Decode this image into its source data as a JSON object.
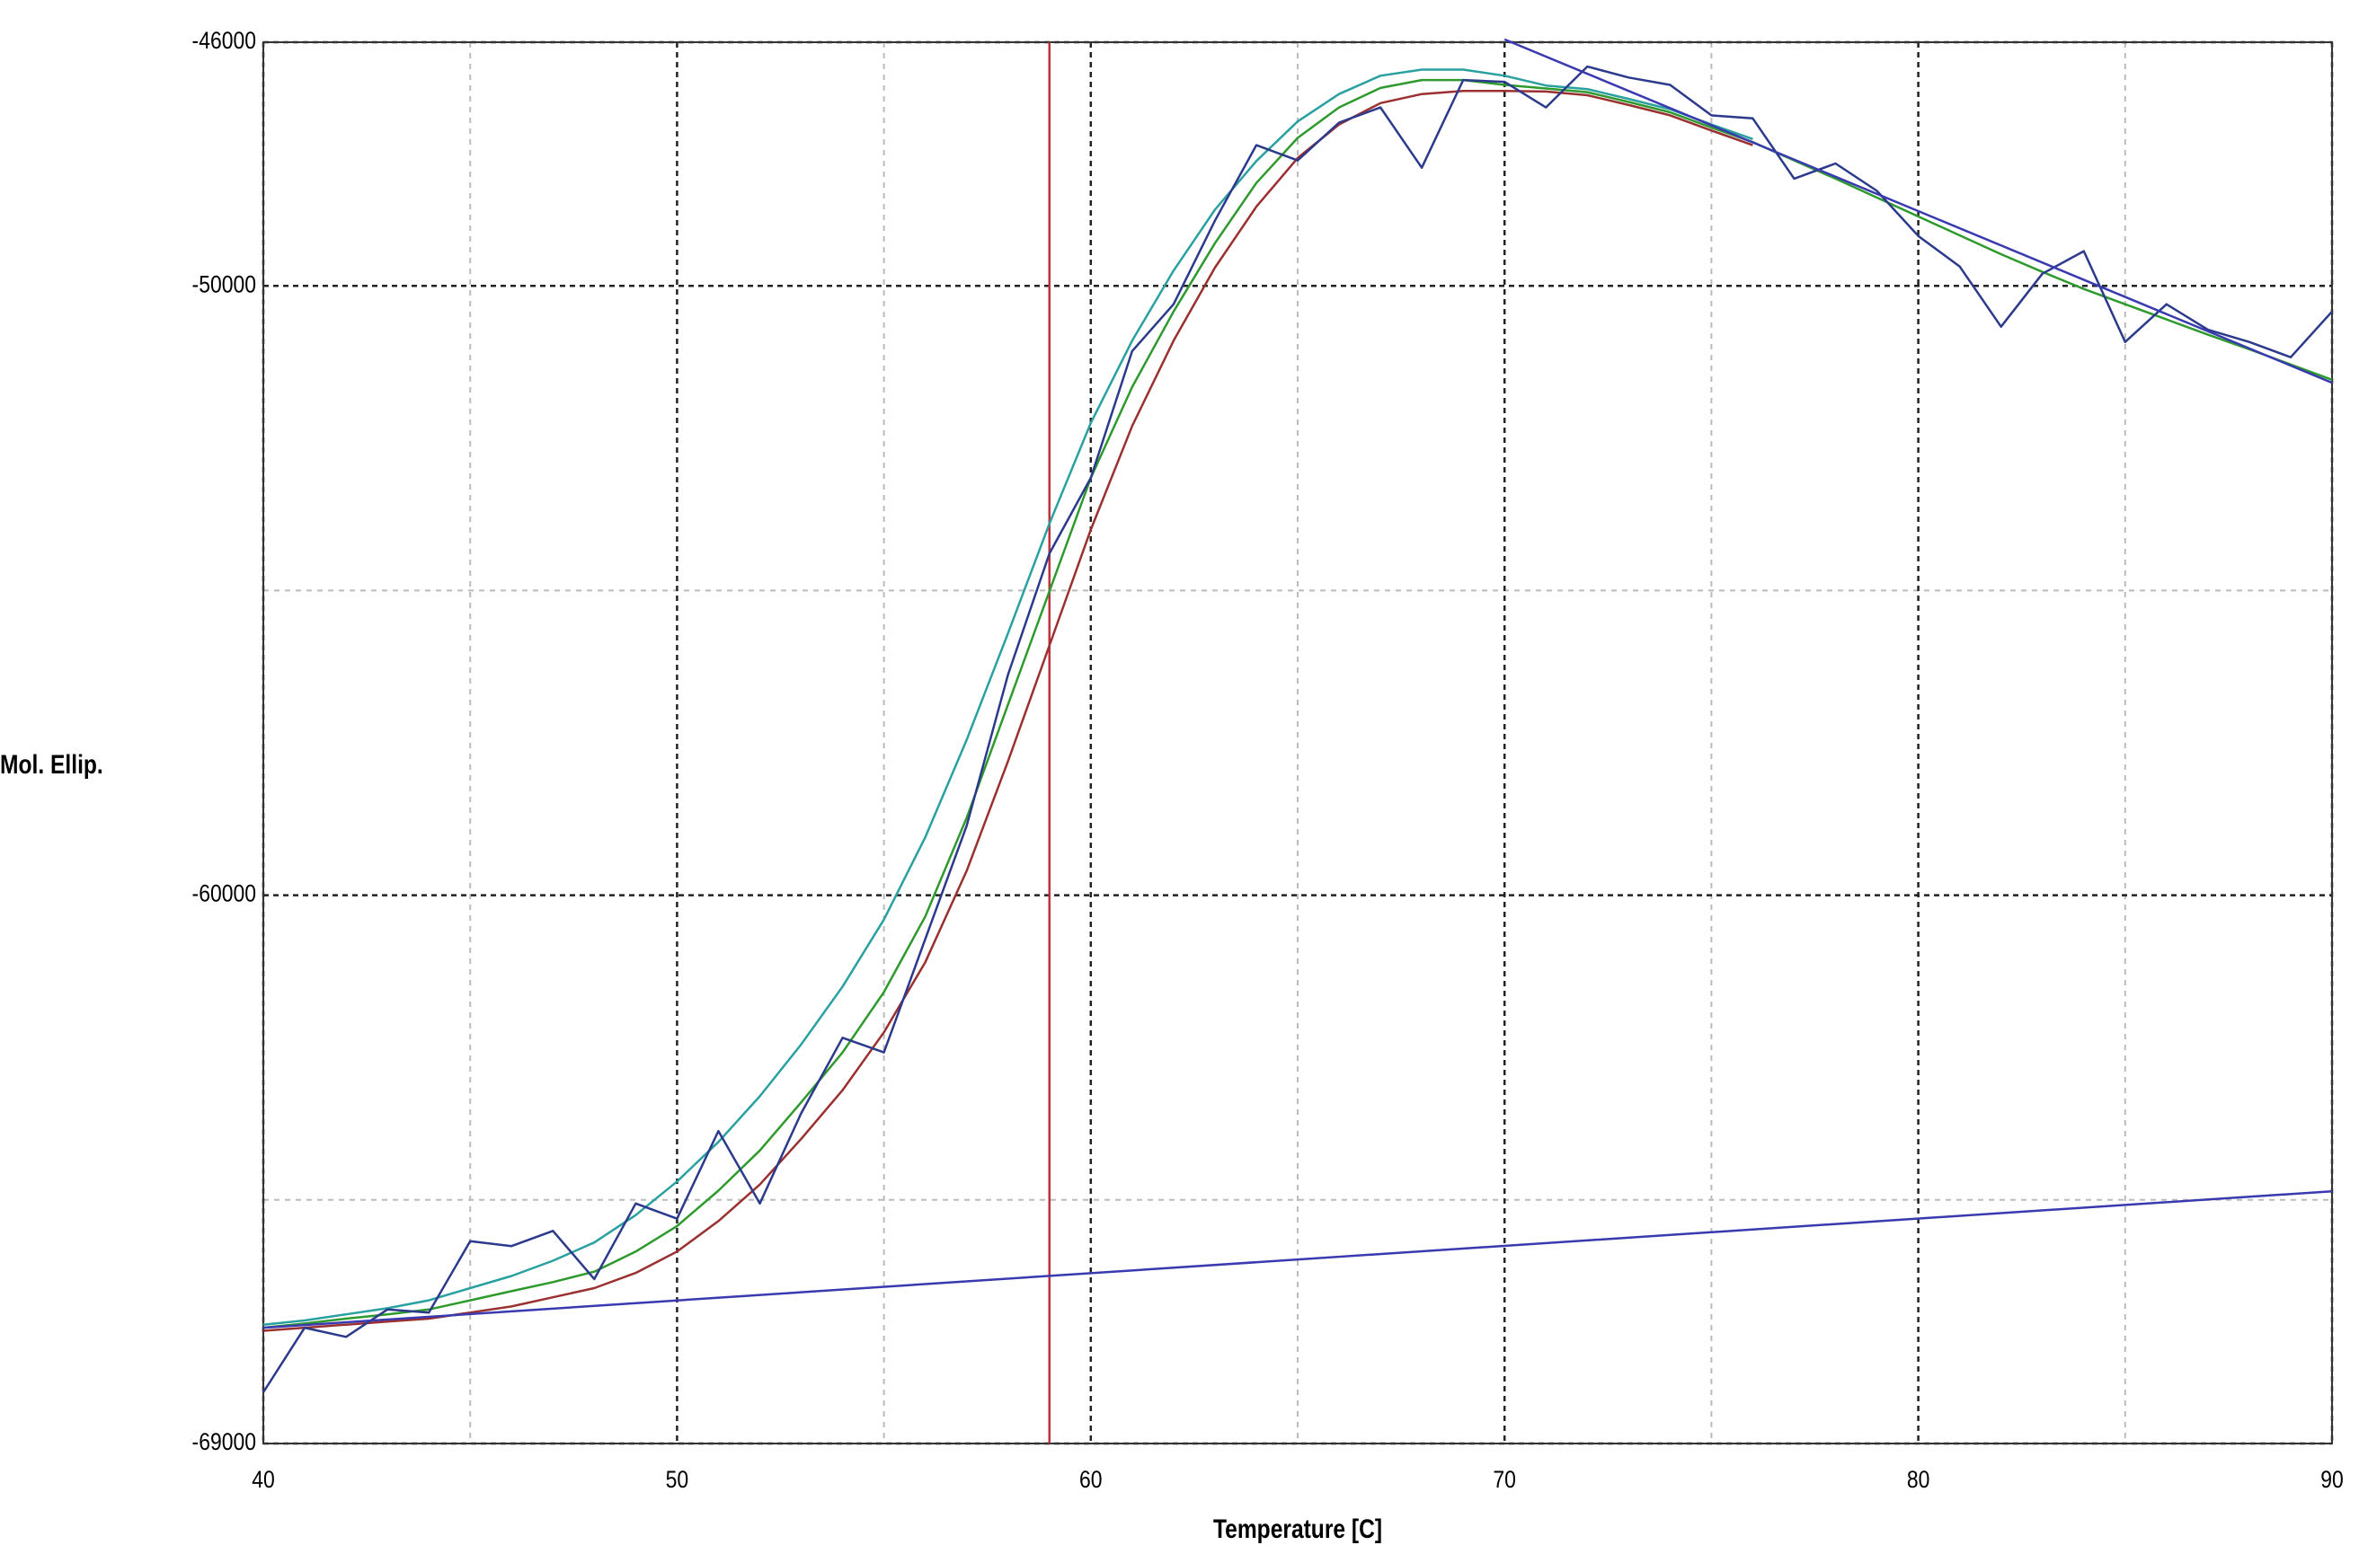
{
  "chart_data": {
    "type": "line",
    "x_label": "Temperature [C]",
    "y_label": "Mol. Ellip.",
    "xlim": [
      40,
      90
    ],
    "ylim": [
      -69000,
      -46000
    ],
    "xticks": [
      40,
      50,
      60,
      70,
      80,
      90
    ],
    "yticks": [
      -69000,
      -60000,
      -50000,
      -46000
    ],
    "x_minor_grid": [
      45,
      55,
      65,
      75,
      85
    ],
    "y_minor_grid": [
      -65000,
      -55000
    ],
    "grid": true,
    "vlines": [
      {
        "x": 59,
        "color": "#c0303a"
      }
    ],
    "x": [
      40,
      41,
      42,
      43,
      44,
      45,
      46,
      47,
      48,
      49,
      50,
      51,
      52,
      53,
      54,
      55,
      56,
      57,
      58,
      59,
      60,
      61,
      62,
      63,
      64,
      65,
      66,
      67,
      68,
      69,
      70,
      71,
      72,
      73,
      74,
      75,
      76,
      77,
      78,
      79,
      80,
      81,
      82,
      83,
      84,
      85,
      86,
      87,
      88,
      89,
      90
    ],
    "series": [
      {
        "color": "#9a3030",
        "values": [
          -67150,
          -67100,
          -67050,
          -67000,
          -66950,
          -66850,
          -66750,
          -66600,
          -66450,
          -66200,
          -65850,
          -65350,
          -64750,
          -64000,
          -63200,
          -62250,
          -61100,
          -59600,
          -57800,
          -55900,
          -54000,
          -52300,
          -50900,
          -49700,
          -48700,
          -47900,
          -47350,
          -47000,
          -46850,
          -46800,
          -46800,
          -46810,
          -46870,
          -47030,
          -47200,
          -47450,
          -47690,
          null,
          null,
          null,
          null,
          null,
          null,
          null,
          null,
          null,
          null,
          null,
          null,
          null,
          null
        ]
      },
      {
        "color": "#2aa0a0",
        "values": [
          -67050,
          -66980,
          -66880,
          -66780,
          -66650,
          -66450,
          -66250,
          -66000,
          -65700,
          -65250,
          -64700,
          -64050,
          -63300,
          -62450,
          -61500,
          -60400,
          -59050,
          -57450,
          -55700,
          -53900,
          -52250,
          -50900,
          -49750,
          -48750,
          -47950,
          -47300,
          -46850,
          -46550,
          -46450,
          -46450,
          -46550,
          -46710,
          -46770,
          -46930,
          -47100,
          -47350,
          -47590,
          null,
          null,
          null,
          null,
          null,
          null,
          null,
          null,
          null,
          null,
          null,
          null,
          null,
          null
        ]
      },
      {
        "color": "#2e9a2e",
        "values": [
          -67100,
          -67030,
          -66950,
          -66880,
          -66800,
          -66650,
          -66500,
          -66350,
          -66180,
          -65850,
          -65430,
          -64850,
          -64190,
          -63400,
          -62580,
          -61590,
          -60350,
          -58730,
          -56870,
          -55010,
          -53150,
          -51660,
          -50420,
          -49300,
          -48310,
          -47570,
          -47070,
          -46750,
          -46620,
          -46620,
          -46700,
          -46760,
          -46820,
          -46980,
          -47150,
          -47400,
          -47640,
          -47940,
          -48240,
          -48550,
          -48860,
          -49170,
          -49480,
          -49770,
          -50050,
          -50300,
          -50550,
          -50800,
          -51040,
          -51290,
          -51540
        ]
      },
      {
        "color": "#2c3a8c",
        "values": [
          -68160,
          -67100,
          -67250,
          -66800,
          -66850,
          -65680,
          -65760,
          -65510,
          -66300,
          -65060,
          -65310,
          -63870,
          -65060,
          -63580,
          -62340,
          -62580,
          -60720,
          -58860,
          -56380,
          -54390,
          -53150,
          -51070,
          -50300,
          -48930,
          -47690,
          -47940,
          -47320,
          -47070,
          -48060,
          -46620,
          -46650,
          -47070,
          -46400,
          -46580,
          -46700,
          -47200,
          -47250,
          -48240,
          -47990,
          -48440,
          -49180,
          -49680,
          -50670,
          -49800,
          -49430,
          -50920,
          -50300,
          -50720,
          -50920,
          -51170,
          -50420
        ]
      },
      {
        "color": "#3a3ab0",
        "x": [
          40,
          90
        ],
        "values": [
          -67100,
          -64860
        ]
      },
      {
        "color": "#3a3ab0",
        "x": [
          70,
          90
        ],
        "values": [
          -45955,
          -51590
        ]
      }
    ]
  }
}
